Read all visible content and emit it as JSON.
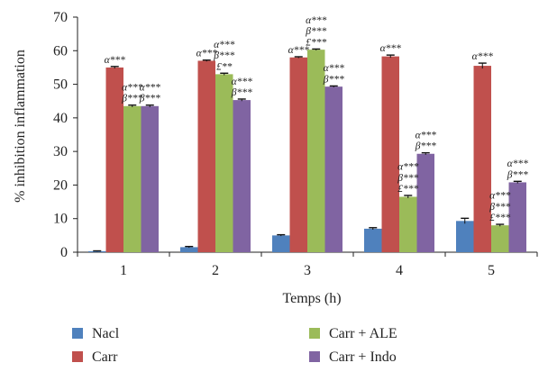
{
  "chart_data": {
    "type": "bar",
    "title": "",
    "xlabel": "Temps (h)",
    "ylabel": "% inhibition inflammation",
    "ylim": [
      0,
      70
    ],
    "yticks": [
      0,
      10,
      20,
      30,
      40,
      50,
      60,
      70
    ],
    "categories": [
      "1",
      "2",
      "3",
      "4",
      "5"
    ],
    "grid": false,
    "legend_position": "bottom",
    "series": [
      {
        "name": "Nacl",
        "color": "#4f81bd",
        "values": [
          0.3,
          1.5,
          5.0,
          7.0,
          9.3
        ],
        "errors": [
          0.1,
          0.2,
          0.2,
          0.3,
          0.8
        ]
      },
      {
        "name": "Carr",
        "color": "#c0504d",
        "values": [
          55.0,
          57.0,
          58.0,
          58.3,
          55.5
        ],
        "errors": [
          0.3,
          0.2,
          0.2,
          0.4,
          0.8
        ]
      },
      {
        "name": "Carr + ALE",
        "color": "#9bbb59",
        "values": [
          43.5,
          53.0,
          60.3,
          16.5,
          8.0
        ],
        "errors": [
          0.3,
          0.3,
          0.2,
          0.4,
          0.3
        ]
      },
      {
        "name": "Carr + Indo",
        "color": "#8064a2",
        "values": [
          43.5,
          45.3,
          49.3,
          29.3,
          20.8
        ],
        "errors": [
          0.3,
          0.3,
          0.2,
          0.3,
          0.3
        ]
      }
    ],
    "annotations": [
      {
        "category": "1",
        "series": "Carr",
        "lines": [
          "α***"
        ]
      },
      {
        "category": "1",
        "series": "Carr + ALE",
        "lines": [
          "α***",
          "β***"
        ]
      },
      {
        "category": "1",
        "series": "Carr + Indo",
        "lines": [
          "α***",
          "β***"
        ]
      },
      {
        "category": "2",
        "series": "Carr",
        "lines": [
          "α***"
        ]
      },
      {
        "category": "2",
        "series": "Carr + ALE",
        "lines": [
          "α***",
          "β***",
          "£**"
        ]
      },
      {
        "category": "2",
        "series": "Carr + Indo",
        "lines": [
          "α***",
          "β***"
        ]
      },
      {
        "category": "3",
        "series": "Carr",
        "lines": [
          "α***"
        ]
      },
      {
        "category": "3",
        "series": "Carr + ALE",
        "lines": [
          "α***",
          "β***",
          "£***"
        ]
      },
      {
        "category": "3",
        "series": "Carr + Indo",
        "lines": [
          "α***",
          "β***"
        ]
      },
      {
        "category": "4",
        "series": "Carr",
        "lines": [
          "α***"
        ]
      },
      {
        "category": "4",
        "series": "Carr + ALE",
        "lines": [
          "α***",
          "β***",
          "£***"
        ]
      },
      {
        "category": "4",
        "series": "Carr + Indo",
        "lines": [
          "α***",
          "β***"
        ]
      },
      {
        "category": "5",
        "series": "Carr",
        "lines": [
          "α***"
        ]
      },
      {
        "category": "5",
        "series": "Carr + ALE",
        "lines": [
          "α***",
          "β***",
          "£***"
        ]
      },
      {
        "category": "5",
        "series": "Carr + Indo",
        "lines": [
          "α***",
          "β***"
        ]
      }
    ]
  }
}
